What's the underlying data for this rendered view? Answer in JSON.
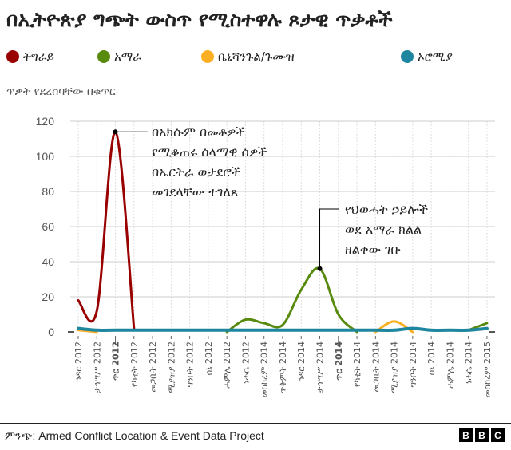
{
  "header": {
    "title": "በኢትዮጵያ ግጭት ውስጥ የሚስተዋሉ ጾታዊ ጥቃቶች"
  },
  "legend": [
    {
      "label": "ትግራይ",
      "color": "#990000"
    },
    {
      "label": "አማራ",
      "color": "#588a0e"
    },
    {
      "label": "ቤኒሻንጉል/ጉሙዝ",
      "color": "#fbb024"
    },
    {
      "label": "ኦሮሚያ",
      "color": "#1f86a0"
    }
  ],
  "axis": {
    "ylabel": "ጥቃት የደረሰባቸው በቁጥር"
  },
  "annotations": [
    {
      "lines": [
        "በአክሱም በመቶዎች",
        "የሚቆጠሩ ሰላማዊ ሰዎች",
        "በኤርትራ ወታደሮች",
        "መገደላቸው ተገለጸ"
      ]
    },
    {
      "lines": [
        "የህወሓት ኃይሎች",
        "ወደ አማራ ክልል",
        "ዘልቀው ገቡ"
      ]
    }
  ],
  "footer": {
    "source": "ምንጭ: Armed Conflict Location & Event Data Project",
    "logo": [
      "B",
      "B",
      "C"
    ]
  },
  "chart_data": {
    "type": "line",
    "title": "በኢትዮጵያ ግጭት ውስጥ የሚስተዋሉ ጾታዊ ጥቃቶች",
    "xlabel": "",
    "ylabel": "ጥቃት የደረሰባቸው በቁጥር",
    "ylim": [
      0,
      120
    ],
    "yticks": [
      0,
      20,
      40,
      60,
      80,
      100,
      120
    ],
    "grid": true,
    "legend_position": "top",
    "categories": [
      "ኅዳር 2012",
      "ታኅሣሥ 2012",
      "ጥር 2012",
      "የካቲት 2012",
      "መጋቢት 2012",
      "ሚያዝያ 2012",
      "ግንቦት 2012",
      "ሰኔ 2012",
      "ሐምሌ 2012",
      "ነሐሴ 2012",
      "መስከረም 2014",
      "ጥቅምት 2014",
      "ኅዳር 2014",
      "ታኅሣሥ 2014",
      "ጥር 2014",
      "የካቲት 2014",
      "መጋቢት 2014",
      "ሚያዝያ 2014",
      "ግንቦት 2014",
      "ሰኔ 2014",
      "ሐምሌ 2014",
      "ነሐሴ 2014",
      "መስከረም 2015"
    ],
    "bold_categories": [
      "ጥር 2012",
      "ጥር 2014"
    ],
    "series": [
      {
        "name": "ትግራይ",
        "color": "#990000",
        "values": [
          18,
          12,
          114,
          2,
          null,
          null,
          null,
          null,
          null,
          null,
          null,
          null,
          null,
          null,
          null,
          null,
          null,
          null,
          null,
          null,
          null,
          null,
          null
        ]
      },
      {
        "name": "አማራ",
        "color": "#588a0e",
        "values": [
          null,
          null,
          null,
          null,
          null,
          null,
          null,
          null,
          0,
          7,
          5,
          4,
          24,
          36,
          10,
          0,
          null,
          null,
          null,
          null,
          null,
          1,
          5
        ]
      },
      {
        "name": "ቤኒሻንጉል/ጉሙዝ",
        "color": "#fbb024",
        "values": [
          1,
          0,
          null,
          null,
          null,
          null,
          null,
          null,
          null,
          null,
          null,
          null,
          null,
          null,
          null,
          null,
          0,
          6,
          0,
          null,
          null,
          null,
          1
        ]
      },
      {
        "name": "ኦሮሚያ",
        "color": "#1f86a0",
        "values": [
          2,
          1,
          1,
          1,
          1,
          1,
          1,
          1,
          1,
          1,
          1,
          1,
          1,
          1,
          1,
          1,
          1,
          1,
          2,
          1,
          1,
          1,
          2
        ]
      }
    ],
    "annotations": [
      {
        "x": "ጥር 2012",
        "y": 114,
        "text": "በአክሱም በመቶዎች የሚቆጠሩ ሰላማዊ ሰዎች በኤርትራ ወታደሮች መገደላቸው ተገለጸ"
      },
      {
        "x": "ታኅሣሥ 2014",
        "y": 36,
        "text": "የህወሓት ኃይሎች ወደ አማራ ክልል ዘልቀው ገቡ"
      }
    ]
  }
}
